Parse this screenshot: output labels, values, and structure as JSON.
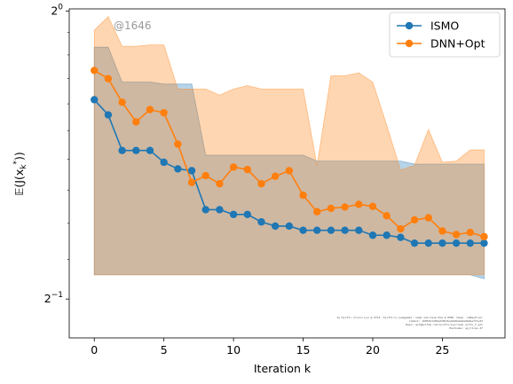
{
  "chart_data": {
    "type": "line",
    "title": "",
    "xlabel": "Iteration k",
    "ylabel": "E(J(x_k^*))",
    "yscale": "log2",
    "xlim": [
      -1.8,
      29.5
    ],
    "ylim_log2": [
      -1.135,
      0.008
    ],
    "xticks": [
      0,
      5,
      10,
      15,
      20,
      25
    ],
    "yticks_log2": [
      0,
      -1
    ],
    "ytick_labels": [
      {
        "base": "2",
        "exp": "0"
      },
      {
        "base": "2",
        "exp": "−1"
      }
    ],
    "legend_position": "top-right",
    "grid": false,
    "annotation": "@1646",
    "footer_note": [
      "by:hjotti (hixon Lyo @ 9716 :hjotti:m_lyepgamm): name uad hang Peq @ DPML !depo -noBay0:ps!",
      "Commit: 16853d1d05e0d0b7ba9dd0a9e9e96bbe7f1a33",
      "Repo: git@github.com:hjotti/Lyo/ismo_actfo_t.git",
      "Hostname: ag_hlcps.2f"
    ],
    "series": [
      {
        "name": "ISMO",
        "color": "#1f77b4",
        "x": [
          0,
          1,
          2,
          3,
          4,
          5,
          6,
          7,
          8,
          9,
          10,
          11,
          12,
          13,
          14,
          15,
          16,
          17,
          18,
          19,
          20,
          21,
          22,
          23,
          24,
          25,
          26,
          27,
          28
        ],
        "y": [
          0.808,
          0.779,
          0.715,
          0.715,
          0.715,
          0.695,
          0.684,
          0.681,
          0.62,
          0.62,
          0.613,
          0.613,
          0.602,
          0.596,
          0.596,
          0.59,
          0.59,
          0.59,
          0.59,
          0.59,
          0.583,
          0.583,
          0.58,
          0.572,
          0.572,
          0.572,
          0.572,
          0.572,
          0.572
        ],
        "band_upper": [
          0.917,
          0.917,
          0.843,
          0.843,
          0.843,
          0.839,
          0.839,
          0.839,
          0.707,
          0.707,
          0.707,
          0.707,
          0.707,
          0.707,
          0.707,
          0.707,
          0.697,
          0.697,
          0.697,
          0.697,
          0.697,
          0.697,
          0.697,
          0.692,
          0.692,
          0.692,
          0.692,
          0.692,
          0.692
        ],
        "band_lower": [
          0.53,
          0.53,
          0.53,
          0.53,
          0.53,
          0.53,
          0.53,
          0.53,
          0.53,
          0.53,
          0.53,
          0.53,
          0.53,
          0.53,
          0.53,
          0.53,
          0.53,
          0.53,
          0.53,
          0.53,
          0.53,
          0.53,
          0.53,
          0.53,
          0.53,
          0.53,
          0.53,
          0.53,
          0.525
        ]
      },
      {
        "name": "DNN+Opt",
        "color": "#ff7f0e",
        "x": [
          0,
          1,
          2,
          3,
          4,
          5,
          6,
          7,
          8,
          9,
          10,
          11,
          12,
          13,
          14,
          15,
          16,
          17,
          18,
          19,
          20,
          21,
          22,
          23,
          24,
          25,
          26,
          27,
          28
        ],
        "y": [
          0.867,
          0.85,
          0.803,
          0.766,
          0.789,
          0.783,
          0.726,
          0.662,
          0.673,
          0.66,
          0.687,
          0.683,
          0.66,
          0.672,
          0.681,
          0.642,
          0.617,
          0.622,
          0.624,
          0.628,
          0.625,
          0.611,
          0.592,
          0.605,
          0.608,
          0.589,
          0.584,
          0.587,
          0.581
        ],
        "band_upper": [
          0.955,
          0.987,
          0.919,
          0.919,
          0.922,
          0.922,
          0.829,
          0.829,
          0.829,
          0.817,
          0.829,
          0.836,
          0.829,
          0.829,
          0.829,
          0.829,
          0.689,
          0.856,
          0.856,
          0.862,
          0.843,
          0.76,
          0.682,
          0.69,
          0.752,
          0.695,
          0.697,
          0.716,
          0.716
        ],
        "band_lower": [
          0.53,
          0.53,
          0.53,
          0.53,
          0.53,
          0.53,
          0.53,
          0.53,
          0.53,
          0.53,
          0.53,
          0.53,
          0.53,
          0.53,
          0.53,
          0.53,
          0.53,
          0.53,
          0.53,
          0.53,
          0.53,
          0.53,
          0.53,
          0.53,
          0.53,
          0.53,
          0.53,
          0.53,
          0.53
        ]
      }
    ]
  }
}
